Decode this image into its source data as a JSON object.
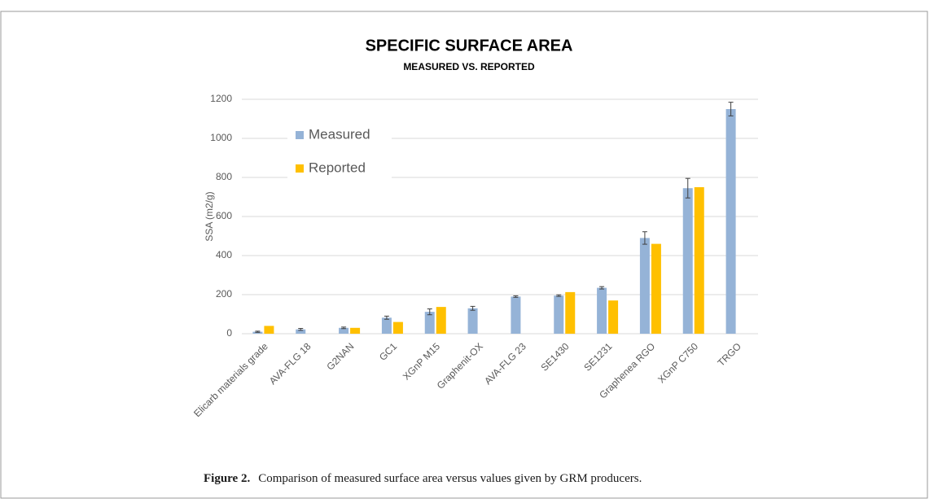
{
  "chart_data": {
    "type": "bar",
    "title": "SPECIFIC SURFACE AREA",
    "subtitle": "MEASURED VS. REPORTED",
    "y_label": "SSA (m2/g)",
    "categories": [
      "Elicarb materials grade",
      "AVA-FLG 18",
      "G2NAN",
      "GC1",
      "XGnP M15",
      "Graphenit-OX",
      "AVA-FLG 23",
      "SE1430",
      "SE1231",
      "Graphenea RGO",
      "XGnP C750",
      "TRGO"
    ],
    "series": [
      {
        "name": "Measured",
        "color": "#95b3d7",
        "values": [
          10,
          22,
          30,
          82,
          112,
          130,
          190,
          195,
          235,
          490,
          745,
          1150
        ],
        "errors": [
          3,
          5,
          4,
          8,
          15,
          10,
          4,
          4,
          6,
          32,
          50,
          35
        ]
      },
      {
        "name": "Reported",
        "color": "#ffc000",
        "values": [
          40,
          null,
          30,
          60,
          137,
          null,
          null,
          213,
          170,
          460,
          750,
          null
        ]
      }
    ],
    "ylim": [
      0,
      1200
    ],
    "yticks": [
      0,
      200,
      400,
      600,
      800,
      1000,
      1200
    ],
    "grid": true,
    "legend": "upper-left"
  },
  "caption": {
    "label": "Figure 2.",
    "text": "Comparison of measured surface area versus values given by GRM producers."
  }
}
